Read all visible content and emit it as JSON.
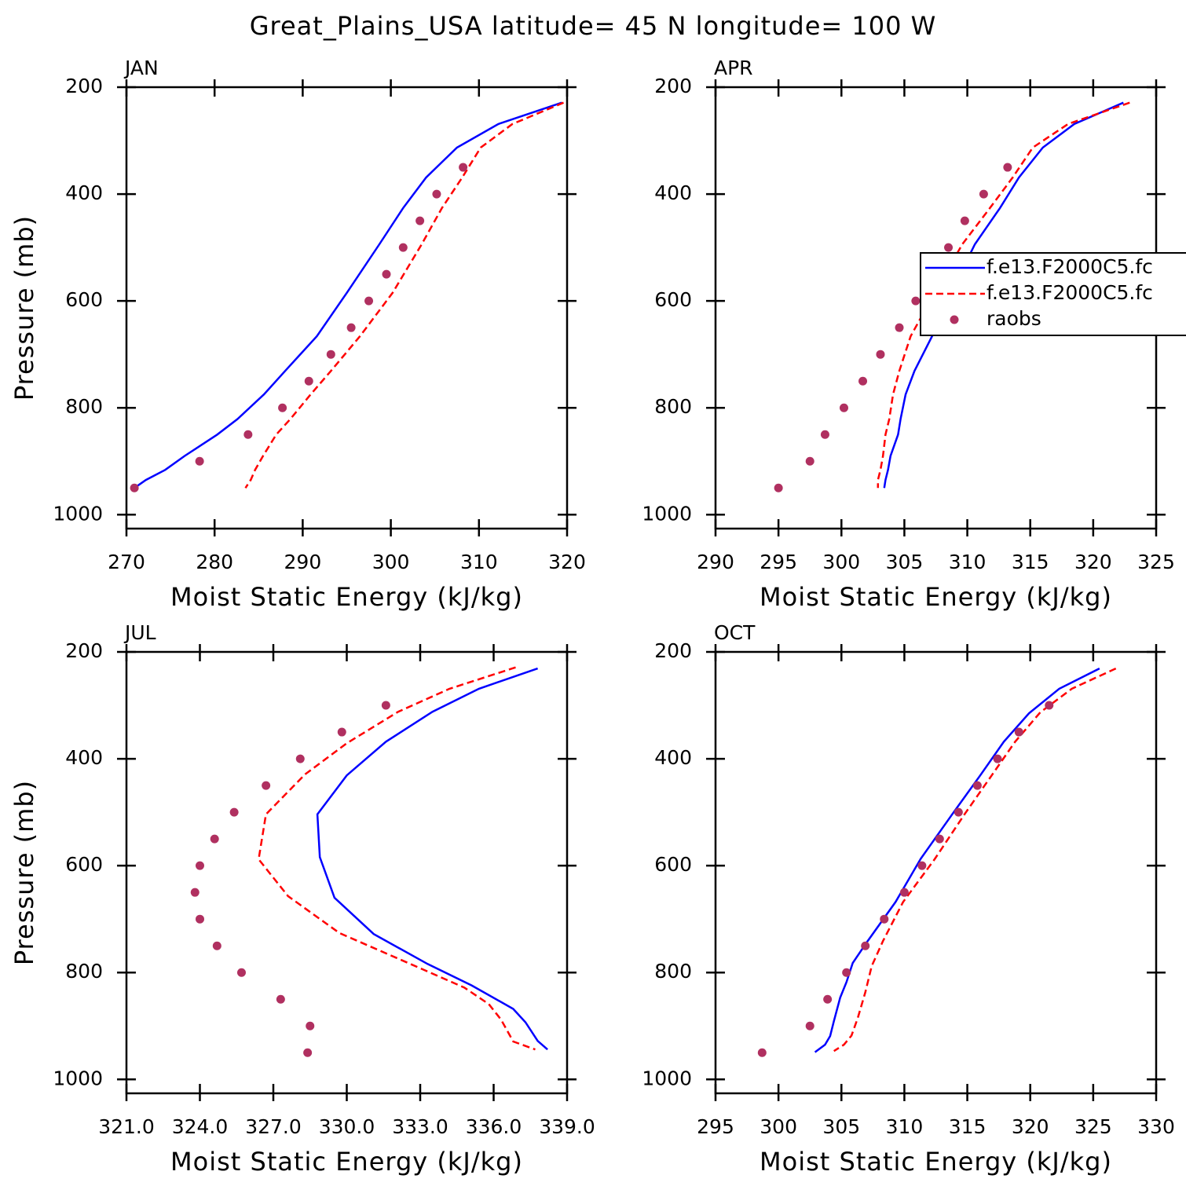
{
  "title": "Great_Plains_USA  latitude= 45 N longitude= 100 W",
  "chart_data": [
    {
      "type": "line",
      "title": "JAN",
      "xlabel": "Moist Static Energy (kJ/kg)",
      "ylabel": "Pressure (mb)",
      "xlim": [
        270,
        320
      ],
      "xticks": [
        270,
        280,
        290,
        300,
        310,
        320
      ],
      "ylim": [
        1026,
        200
      ],
      "yticks": [
        200,
        400,
        600,
        800,
        1000
      ],
      "series": [
        {
          "type": "line",
          "color": "#0000ff",
          "dash": false,
          "x": [
            319.4,
            312.2,
            307.5,
            304.0,
            301.4,
            298.7,
            295.0,
            291.6,
            288.0,
            285.6,
            282.6,
            280.3,
            276.6,
            274.4,
            272.2,
            270.9
          ],
          "y": [
            229,
            269,
            313,
            369,
            426,
            494,
            585,
            666,
            731,
            775,
            821,
            850,
            890,
            916,
            935,
            950
          ]
        },
        {
          "type": "line",
          "color": "#ff0000",
          "dash": true,
          "x": [
            319.6,
            313.8,
            310.2,
            308.1,
            305.8,
            303.5,
            300.2,
            296.5,
            293.2,
            290.9,
            288.6,
            287.0,
            285.5,
            284.6,
            284.1,
            283.5
          ],
          "y": [
            229,
            269,
            313,
            369,
            426,
            494,
            585,
            666,
            731,
            775,
            821,
            850,
            890,
            916,
            935,
            950
          ]
        },
        {
          "type": "scatter",
          "color": "#b03060",
          "x": [
            308.2,
            305.2,
            303.3,
            301.4,
            299.5,
            297.5,
            295.5,
            293.2,
            290.7,
            287.7,
            283.8,
            278.3,
            270.9
          ],
          "y": [
            350,
            400,
            450,
            500,
            550,
            600,
            650,
            700,
            750,
            800,
            850,
            900,
            950
          ]
        }
      ]
    },
    {
      "type": "line",
      "title": "APR",
      "xlabel": "Moist Static Energy (kJ/kg)",
      "xlim": [
        290,
        325
      ],
      "xticks": [
        290,
        295,
        300,
        305,
        310,
        315,
        320,
        325
      ],
      "ylim": [
        1026,
        200
      ],
      "yticks": [
        200,
        400,
        600,
        800,
        1000
      ],
      "legend": "center-right",
      "series": [
        {
          "type": "line",
          "name": "f.e13.F2000C5.fc",
          "color": "#0000ff",
          "dash": false,
          "x": [
            322.4,
            318.5,
            316.0,
            314.1,
            312.6,
            310.6,
            308.7,
            307.2,
            305.8,
            305.1,
            304.7,
            304.5,
            303.9,
            303.7,
            303.5,
            303.4
          ],
          "y": [
            229,
            269,
            313,
            369,
            426,
            494,
            585,
            666,
            731,
            775,
            821,
            850,
            890,
            916,
            935,
            950
          ]
        },
        {
          "type": "line",
          "name": "f.e13.F2000C5.fc",
          "color": "#ff0000",
          "dash": true,
          "x": [
            322.9,
            318.0,
            315.2,
            313.6,
            311.8,
            309.6,
            307.4,
            305.5,
            304.6,
            304.1,
            303.8,
            303.5,
            303.3,
            303.1,
            302.9,
            302.9
          ],
          "y": [
            229,
            269,
            313,
            369,
            426,
            494,
            585,
            666,
            731,
            775,
            821,
            850,
            890,
            916,
            935,
            950
          ]
        },
        {
          "type": "scatter",
          "name": "raobs",
          "color": "#b03060",
          "x": [
            313.2,
            311.3,
            309.8,
            308.5,
            307.2,
            305.9,
            304.6,
            303.1,
            301.7,
            300.2,
            298.7,
            297.5,
            295.0
          ],
          "y": [
            350,
            400,
            450,
            500,
            550,
            600,
            650,
            700,
            750,
            800,
            850,
            900,
            950
          ]
        }
      ]
    },
    {
      "type": "line",
      "title": "JUL",
      "xlabel": "Moist Static Energy (kJ/kg)",
      "ylabel": "Pressure (mb)",
      "xlim": [
        321,
        339
      ],
      "xticks": [
        {
          "value": 321,
          "label": "321.0"
        },
        {
          "value": 324,
          "label": "324.0"
        },
        {
          "value": 327,
          "label": "327.0"
        },
        {
          "value": 330,
          "label": "330.0"
        },
        {
          "value": 333,
          "label": "333.0"
        },
        {
          "value": 336,
          "label": "336.0"
        },
        {
          "value": 339,
          "label": "339.0"
        }
      ],
      "ylim": [
        1026,
        200
      ],
      "yticks": [
        200,
        400,
        600,
        800,
        1000
      ],
      "series": [
        {
          "type": "line",
          "color": "#0000ff",
          "dash": false,
          "x": [
            337.8,
            335.4,
            333.5,
            331.6,
            330.0,
            328.8,
            328.9,
            329.5,
            331.1,
            333.3,
            335.1,
            336.8,
            337.3,
            337.8,
            338.2
          ],
          "y": [
            231,
            269,
            312,
            368,
            431,
            504,
            584,
            660,
            728,
            784,
            824,
            868,
            893,
            928,
            944
          ]
        },
        {
          "type": "line",
          "color": "#ff0000",
          "dash": true,
          "x": [
            336.9,
            334.2,
            332.1,
            330.0,
            328.3,
            326.7,
            326.4,
            327.6,
            329.7,
            332.6,
            334.8,
            335.8,
            336.3,
            336.8,
            337.7
          ],
          "y": [
            229,
            269,
            312,
            371,
            429,
            504,
            588,
            657,
            726,
            784,
            828,
            859,
            888,
            929,
            944
          ]
        },
        {
          "type": "scatter",
          "color": "#b03060",
          "x": [
            331.6,
            329.8,
            328.1,
            326.7,
            325.4,
            324.6,
            324.0,
            323.8,
            324.0,
            324.7,
            325.7,
            327.3,
            328.5,
            328.4
          ],
          "y": [
            300,
            350,
            400,
            450,
            500,
            550,
            600,
            650,
            700,
            750,
            800,
            850,
            900,
            950
          ]
        }
      ]
    },
    {
      "type": "line",
      "title": "OCT",
      "xlabel": "Moist Static Energy (kJ/kg)",
      "xlim": [
        295,
        330
      ],
      "xticks": [
        295,
        300,
        305,
        310,
        315,
        320,
        325,
        330
      ],
      "ylim": [
        1026,
        200
      ],
      "yticks": [
        200,
        400,
        600,
        800,
        1000
      ],
      "series": [
        {
          "type": "line",
          "color": "#0000ff",
          "dash": false,
          "x": [
            325.5,
            322.3,
            319.9,
            317.9,
            316.0,
            313.8,
            311.3,
            309.3,
            307.0,
            305.9,
            305.4,
            304.9,
            304.4,
            304.1,
            303.7,
            302.9
          ],
          "y": [
            231,
            269,
            315,
            368,
            432,
            504,
            587,
            668,
            744,
            782,
            818,
            847,
            891,
            919,
            935,
            949
          ]
        },
        {
          "type": "line",
          "color": "#ff0000",
          "dash": true,
          "x": [
            326.8,
            323.3,
            320.8,
            318.8,
            317.0,
            314.8,
            312.4,
            309.9,
            308.3,
            307.4,
            306.9,
            306.3,
            305.8,
            305.2,
            304.4
          ],
          "y": [
            231,
            269,
            313,
            368,
            429,
            503,
            588,
            668,
            741,
            788,
            837,
            885,
            918,
            935,
            947
          ]
        },
        {
          "type": "scatter",
          "color": "#b03060",
          "x": [
            321.5,
            319.1,
            317.4,
            315.8,
            314.3,
            312.8,
            311.4,
            310.0,
            308.4,
            306.9,
            305.4,
            303.9,
            302.5,
            298.7
          ],
          "y": [
            300,
            350,
            400,
            450,
            500,
            550,
            600,
            650,
            700,
            750,
            800,
            850,
            900,
            950
          ]
        }
      ]
    }
  ]
}
